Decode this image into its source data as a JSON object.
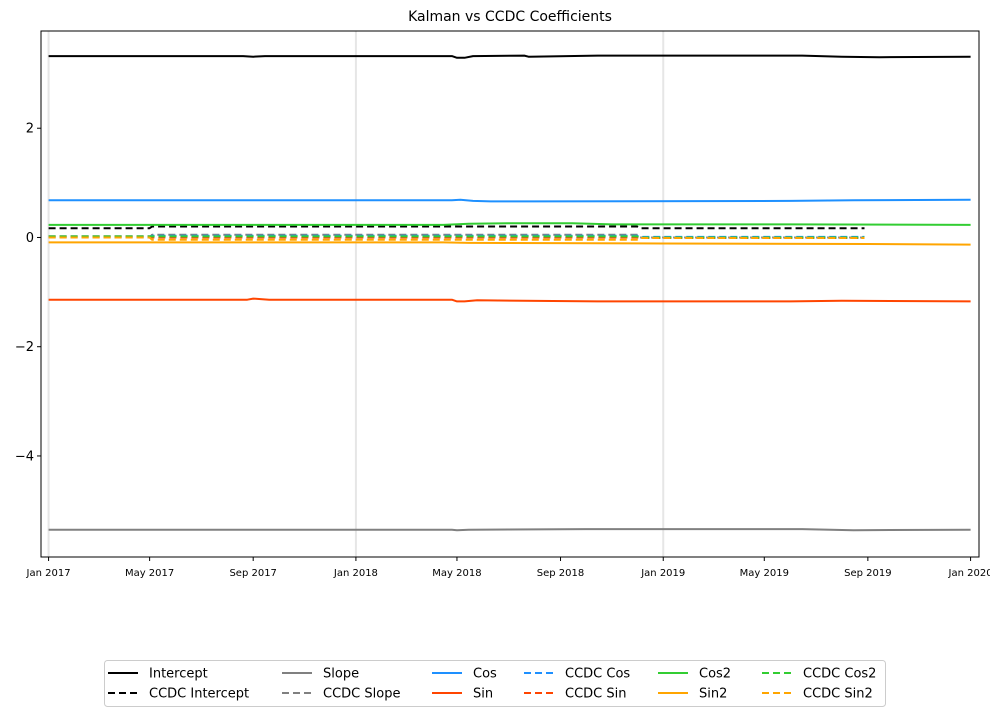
{
  "chart_data": {
    "type": "line",
    "title": "Kalman vs CCDC Coefficients",
    "xlabel": "",
    "ylabel": "",
    "xlim": [
      "2016-12-23",
      "2020-01-11"
    ],
    "ylim": [
      -5.85,
      3.78
    ],
    "grid": "vertical lines at Jan 2017, Jan 2018, Jan 2019",
    "legend_position": "bottom-center",
    "yticks": [
      {
        "value": 2,
        "label": "2"
      },
      {
        "value": 0,
        "label": "0"
      },
      {
        "value": -2,
        "label": "−2"
      },
      {
        "value": -4,
        "label": "−4"
      }
    ],
    "xticks": [
      {
        "value": "2017-01-01",
        "label": "Jan 2017"
      },
      {
        "value": "2017-05-01",
        "label": "May 2017"
      },
      {
        "value": "2017-09-01",
        "label": "Sep 2017"
      },
      {
        "value": "2018-01-01",
        "label": "Jan 2018"
      },
      {
        "value": "2018-05-01",
        "label": "May 2018"
      },
      {
        "value": "2018-09-01",
        "label": "Sep 2018"
      },
      {
        "value": "2019-01-01",
        "label": "Jan 2019"
      },
      {
        "value": "2019-05-01",
        "label": "May 2019"
      },
      {
        "value": "2019-09-01",
        "label": "Sep 2019"
      },
      {
        "value": "2020-01-01",
        "label": "Jan 2020"
      }
    ],
    "vgrid": [
      "2017-01-01",
      "2018-01-01",
      "2019-01-01"
    ],
    "series": [
      {
        "name": "Intercept",
        "color": "#000000",
        "dash": "solid",
        "points": [
          [
            "2017-01-01",
            3.32
          ],
          [
            "2017-08-20",
            3.32
          ],
          [
            "2017-09-01",
            3.31
          ],
          [
            "2017-09-15",
            3.32
          ],
          [
            "2018-04-25",
            3.32
          ],
          [
            "2018-05-01",
            3.29
          ],
          [
            "2018-05-10",
            3.29
          ],
          [
            "2018-05-20",
            3.32
          ],
          [
            "2018-07-20",
            3.33
          ],
          [
            "2018-07-25",
            3.31
          ],
          [
            "2018-10-15",
            3.33
          ],
          [
            "2019-06-15",
            3.33
          ],
          [
            "2019-08-01",
            3.31
          ],
          [
            "2019-09-15",
            3.3
          ],
          [
            "2020-01-01",
            3.31
          ]
        ]
      },
      {
        "name": "CCDC Intercept",
        "color": "#000000",
        "dash": "dashed",
        "points": [
          [
            "2017-01-01",
            0.17
          ],
          [
            "2017-05-01",
            0.17
          ],
          [
            "2017-05-04",
            0.2
          ],
          [
            "2018-12-01",
            0.2
          ],
          [
            "2018-12-04",
            0.17
          ],
          [
            "2019-08-28",
            0.17
          ]
        ]
      },
      {
        "name": "Slope",
        "color": "#808080",
        "dash": "solid",
        "points": [
          [
            "2017-01-01",
            -5.35
          ],
          [
            "2018-04-25",
            -5.35
          ],
          [
            "2018-05-01",
            -5.36
          ],
          [
            "2018-05-15",
            -5.35
          ],
          [
            "2018-10-01",
            -5.34
          ],
          [
            "2019-06-15",
            -5.34
          ],
          [
            "2019-08-15",
            -5.36
          ],
          [
            "2020-01-01",
            -5.35
          ]
        ]
      },
      {
        "name": "CCDC Slope",
        "color": "#808080",
        "dash": "dashed",
        "points": [
          [
            "2017-01-01",
            0.0
          ],
          [
            "2017-05-01",
            0.0
          ],
          [
            "2017-05-04",
            0.05
          ],
          [
            "2018-12-01",
            0.05
          ],
          [
            "2018-12-04",
            0.0
          ],
          [
            "2019-08-28",
            0.0
          ]
        ]
      },
      {
        "name": "Cos",
        "color": "#1e90ff",
        "dash": "solid",
        "points": [
          [
            "2017-01-01",
            0.68
          ],
          [
            "2018-04-25",
            0.68
          ],
          [
            "2018-05-05",
            0.69
          ],
          [
            "2018-05-20",
            0.67
          ],
          [
            "2018-06-10",
            0.66
          ],
          [
            "2018-08-01",
            0.66
          ],
          [
            "2019-06-01",
            0.67
          ],
          [
            "2019-08-15",
            0.68
          ],
          [
            "2020-01-01",
            0.69
          ]
        ]
      },
      {
        "name": "CCDC Cos",
        "color": "#1e90ff",
        "dash": "dashed",
        "points": [
          [
            "2017-01-01",
            0.02
          ],
          [
            "2017-05-01",
            0.02
          ],
          [
            "2017-05-04",
            0.03
          ],
          [
            "2018-12-01",
            0.03
          ],
          [
            "2018-12-04",
            0.01
          ],
          [
            "2019-08-28",
            0.01
          ]
        ]
      },
      {
        "name": "Sin",
        "color": "#ff4500",
        "dash": "solid",
        "points": [
          [
            "2017-01-01",
            -1.14
          ],
          [
            "2017-08-25",
            -1.14
          ],
          [
            "2017-09-01",
            -1.12
          ],
          [
            "2017-09-20",
            -1.14
          ],
          [
            "2018-04-25",
            -1.14
          ],
          [
            "2018-05-01",
            -1.17
          ],
          [
            "2018-05-10",
            -1.17
          ],
          [
            "2018-05-25",
            -1.15
          ],
          [
            "2018-10-15",
            -1.17
          ],
          [
            "2019-06-01",
            -1.17
          ],
          [
            "2019-08-01",
            -1.16
          ],
          [
            "2020-01-01",
            -1.17
          ]
        ]
      },
      {
        "name": "CCDC Sin",
        "color": "#ff4500",
        "dash": "dashed",
        "points": [
          [
            "2017-01-01",
            0.02
          ],
          [
            "2017-05-01",
            0.02
          ],
          [
            "2017-05-04",
            0.0
          ],
          [
            "2018-12-01",
            0.0
          ],
          [
            "2018-12-04",
            -0.01
          ],
          [
            "2019-08-28",
            -0.01
          ]
        ]
      },
      {
        "name": "Cos2",
        "color": "#32cd32",
        "dash": "solid",
        "points": [
          [
            "2017-01-01",
            0.23
          ],
          [
            "2017-09-01",
            0.23
          ],
          [
            "2018-04-15",
            0.23
          ],
          [
            "2018-05-15",
            0.25
          ],
          [
            "2018-07-01",
            0.26
          ],
          [
            "2018-09-15",
            0.26
          ],
          [
            "2018-11-01",
            0.24
          ],
          [
            "2019-06-01",
            0.24
          ],
          [
            "2020-01-01",
            0.23
          ]
        ]
      },
      {
        "name": "CCDC Cos2",
        "color": "#32cd32",
        "dash": "dashed",
        "points": [
          [
            "2017-01-01",
            0.02
          ],
          [
            "2017-05-01",
            0.02
          ],
          [
            "2017-05-04",
            0.02
          ],
          [
            "2018-12-01",
            0.02
          ],
          [
            "2018-12-04",
            0.0
          ],
          [
            "2019-08-28",
            0.0
          ]
        ]
      },
      {
        "name": "Sin2",
        "color": "#ffa500",
        "dash": "solid",
        "points": [
          [
            "2017-01-01",
            -0.09
          ],
          [
            "2018-04-15",
            -0.09
          ],
          [
            "2018-05-15",
            -0.1
          ],
          [
            "2019-01-01",
            -0.11
          ],
          [
            "2019-09-01",
            -0.12
          ],
          [
            "2020-01-01",
            -0.13
          ]
        ]
      },
      {
        "name": "CCDC Sin2",
        "color": "#ffa500",
        "dash": "dashed",
        "points": [
          [
            "2017-01-01",
            0.0
          ],
          [
            "2017-05-01",
            0.0
          ],
          [
            "2017-05-04",
            -0.04
          ],
          [
            "2018-12-01",
            -0.04
          ],
          [
            "2018-12-04",
            -0.01
          ],
          [
            "2019-08-28",
            -0.01
          ]
        ]
      }
    ],
    "legend_columns": [
      [
        "Intercept",
        "CCDC Intercept"
      ],
      [
        "Slope",
        "CCDC Slope"
      ],
      [
        "Cos",
        "Sin"
      ],
      [
        "CCDC Cos",
        "CCDC Sin"
      ],
      [
        "Cos2",
        "Sin2"
      ],
      [
        "CCDC Cos2",
        "CCDC Sin2"
      ]
    ]
  }
}
